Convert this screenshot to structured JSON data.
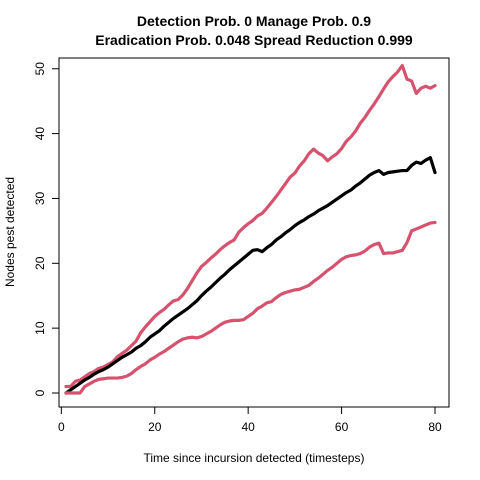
{
  "chart_data": {
    "type": "line",
    "title_line1": "Detection Prob. 0 Manage Prob. 0.9",
    "title_line2": "Eradication Prob. 0.048 Spread Reduction 0.999",
    "xlabel": "Time since incursion detected (timesteps)",
    "ylabel": "Nodes pest detected",
    "xlim": [
      1,
      80
    ],
    "ylim": [
      0,
      50.5
    ],
    "xticks": [
      0,
      20,
      40,
      60,
      80
    ],
    "yticks": [
      0,
      10,
      20,
      30,
      40,
      50
    ],
    "x": [
      1,
      2,
      3,
      4,
      5,
      6,
      7,
      8,
      9,
      10,
      11,
      12,
      13,
      14,
      15,
      16,
      17,
      18,
      19,
      20,
      21,
      22,
      23,
      24,
      25,
      26,
      27,
      28,
      29,
      30,
      31,
      32,
      33,
      34,
      35,
      36,
      37,
      38,
      39,
      40,
      41,
      42,
      43,
      44,
      45,
      46,
      47,
      48,
      49,
      50,
      51,
      52,
      53,
      54,
      55,
      56,
      57,
      58,
      59,
      60,
      61,
      62,
      63,
      64,
      65,
      66,
      67,
      68,
      69,
      70,
      71,
      72,
      73,
      74,
      75,
      76,
      77,
      78,
      79,
      80
    ],
    "series": [
      {
        "color": "#d6526e",
        "values": [
          1.0,
          1.0,
          1.8,
          2.0,
          2.5,
          3.0,
          3.3,
          3.8,
          4.0,
          4.4,
          4.8,
          5.6,
          6.1,
          6.6,
          7.3,
          8.0,
          9.3,
          10.2,
          11.0,
          11.8,
          12.4,
          12.9,
          13.6,
          14.2,
          14.4,
          15.1,
          16.1,
          17.3,
          18.5,
          19.5,
          20.1,
          20.8,
          21.4,
          22.1,
          22.7,
          23.2,
          23.6,
          24.8,
          25.5,
          26.1,
          26.6,
          27.3,
          27.7,
          28.5,
          29.4,
          30.3,
          31.3,
          32.3,
          33.3,
          33.9,
          35.0,
          35.8,
          36.9,
          37.6,
          37.0,
          36.6,
          35.8,
          36.4,
          36.9,
          37.7,
          38.8,
          39.5,
          40.4,
          41.6,
          42.5,
          43.6,
          44.6,
          45.7,
          46.9,
          48.0,
          48.8,
          49.5,
          50.5,
          48.4,
          48.1,
          46.2,
          47.0,
          47.3,
          47.0,
          47.4
        ]
      },
      {
        "color": "#000000",
        "values": [
          0.0,
          0.5,
          1.0,
          1.5,
          2.0,
          2.4,
          2.9,
          3.3,
          3.6,
          4.0,
          4.5,
          5.0,
          5.5,
          5.9,
          6.3,
          6.9,
          7.3,
          7.9,
          8.6,
          9.1,
          9.6,
          10.3,
          10.9,
          11.5,
          12.0,
          12.5,
          13.0,
          13.6,
          14.2,
          15.0,
          15.7,
          16.3,
          17.0,
          17.7,
          18.3,
          19.0,
          19.6,
          20.2,
          20.8,
          21.4,
          22.0,
          22.1,
          21.8,
          22.4,
          22.9,
          23.6,
          24.1,
          24.7,
          25.2,
          25.8,
          26.3,
          26.7,
          27.2,
          27.6,
          28.1,
          28.5,
          28.9,
          29.4,
          29.9,
          30.4,
          30.9,
          31.3,
          31.9,
          32.4,
          33.0,
          33.6,
          34.0,
          34.3,
          33.7,
          34.0,
          34.1,
          34.2,
          34.3,
          34.3,
          35.1,
          35.6,
          35.4,
          35.9,
          36.3,
          34.0
        ]
      },
      {
        "color": "#d6526e",
        "values": [
          0.0,
          0.0,
          0.0,
          0.0,
          1.0,
          1.4,
          1.8,
          2.1,
          2.2,
          2.3,
          2.3,
          2.3,
          2.4,
          2.6,
          3.0,
          3.6,
          4.1,
          4.5,
          5.1,
          5.5,
          6.0,
          6.4,
          6.9,
          7.4,
          7.9,
          8.3,
          8.5,
          8.6,
          8.5,
          8.7,
          9.1,
          9.5,
          10.0,
          10.5,
          10.9,
          11.1,
          11.2,
          11.2,
          11.3,
          11.8,
          12.3,
          13.0,
          13.4,
          13.9,
          14.1,
          14.7,
          15.2,
          15.5,
          15.7,
          15.9,
          16.0,
          16.3,
          16.6,
          17.2,
          17.7,
          18.3,
          18.9,
          19.4,
          20.0,
          20.6,
          21.0,
          21.2,
          21.3,
          21.5,
          21.9,
          22.5,
          22.9,
          23.1,
          21.5,
          21.6,
          21.6,
          21.8,
          22.0,
          23.2,
          25.0,
          25.3,
          25.6,
          25.9,
          26.2,
          26.3
        ]
      }
    ]
  }
}
